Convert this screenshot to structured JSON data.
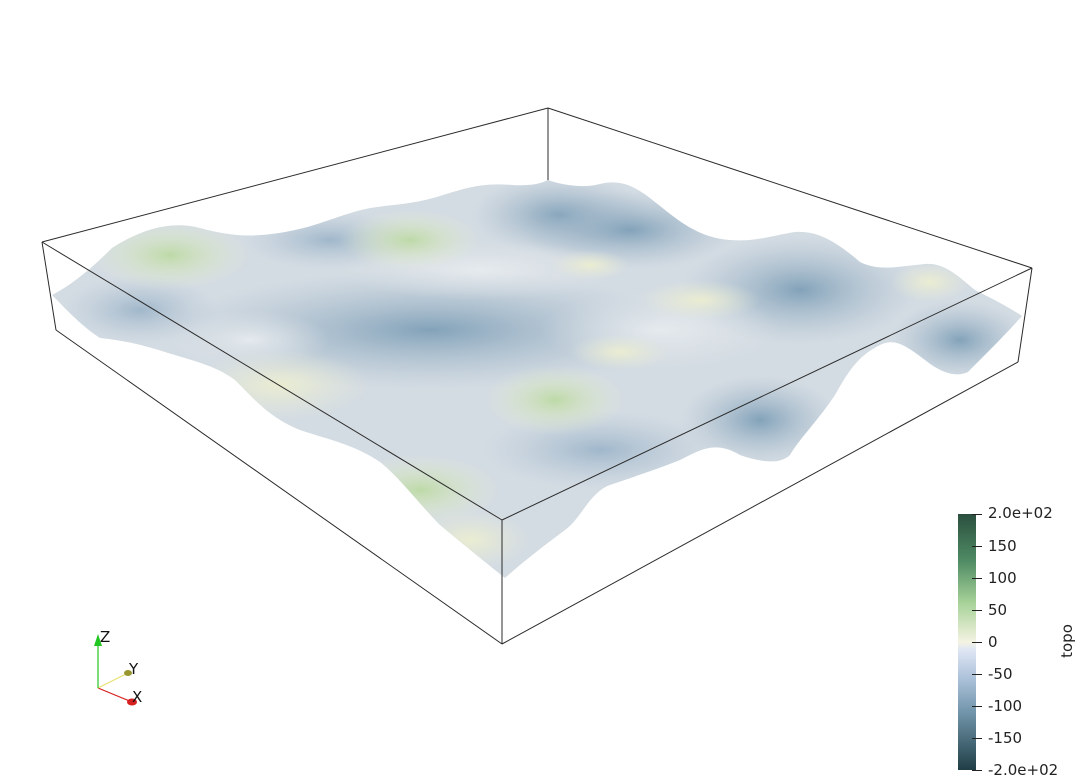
{
  "scene": {
    "field_name": "topo",
    "background": "#ffffff",
    "outline_color": "#2b2b2b"
  },
  "colorbar": {
    "title": "topo",
    "range": [
      -200,
      200
    ],
    "labels": [
      "2.0e+02",
      "150",
      "100",
      "50",
      "0",
      "-50",
      "-100",
      "-150",
      "-2.0e+02"
    ],
    "colors": {
      "max": "#2b4f3f",
      "high": "#4e8a63",
      "mid_high": "#a9d39a",
      "zero": "#f4f3e2",
      "low_start": "#cdd9ec",
      "mid_low": "#7e9fb7",
      "deep": "#3f6c80",
      "min": "#1f3e46"
    }
  },
  "orientation_axes": {
    "x_label": "X",
    "y_label": "Y",
    "z_label": "Z",
    "x_color": "#d62020",
    "y_color": "#e8e070",
    "z_color": "#22c622"
  }
}
